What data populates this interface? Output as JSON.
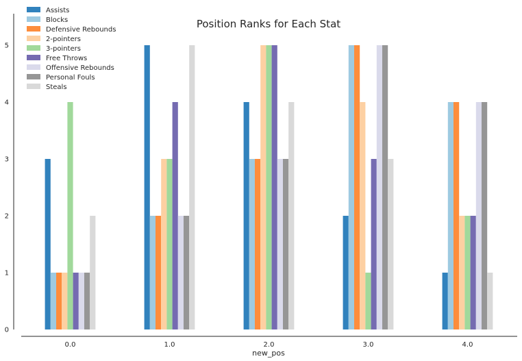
{
  "chart_data": {
    "type": "bar",
    "title": "Position Ranks for Each Stat",
    "xlabel": "new_pos",
    "ylabel": "",
    "categories": [
      "0.0",
      "1.0",
      "2.0",
      "3.0",
      "4.0"
    ],
    "ylim": [
      0,
      5.2
    ],
    "yticks": [
      0,
      1,
      2,
      3,
      4,
      5
    ],
    "grid": false,
    "legend_position": "top-left",
    "series": [
      {
        "name": "Assists",
        "color": "#3182bd",
        "values": [
          3,
          5,
          4,
          2,
          1
        ]
      },
      {
        "name": "Blocks",
        "color": "#9ecae1",
        "values": [
          1,
          2,
          3,
          5,
          4
        ]
      },
      {
        "name": "Defensive Rebounds",
        "color": "#fd8d3c",
        "values": [
          1,
          2,
          3,
          5,
          4
        ]
      },
      {
        "name": "2-pointers",
        "color": "#fdd0a2",
        "values": [
          1,
          3,
          5,
          4,
          2
        ]
      },
      {
        "name": "3-pointers",
        "color": "#a1d99b",
        "values": [
          4,
          3,
          5,
          1,
          2
        ]
      },
      {
        "name": "Free Throws",
        "color": "#756bb1",
        "values": [
          1,
          4,
          5,
          3,
          2
        ]
      },
      {
        "name": "Offensive Rebounds",
        "color": "#dadaeb",
        "values": [
          1,
          2,
          3,
          5,
          4
        ]
      },
      {
        "name": "Personal Fouls",
        "color": "#969696",
        "values": [
          1,
          2,
          3,
          5,
          4
        ]
      },
      {
        "name": "Steals",
        "color": "#d9d9d9",
        "values": [
          2,
          5,
          4,
          3,
          1
        ]
      }
    ]
  }
}
